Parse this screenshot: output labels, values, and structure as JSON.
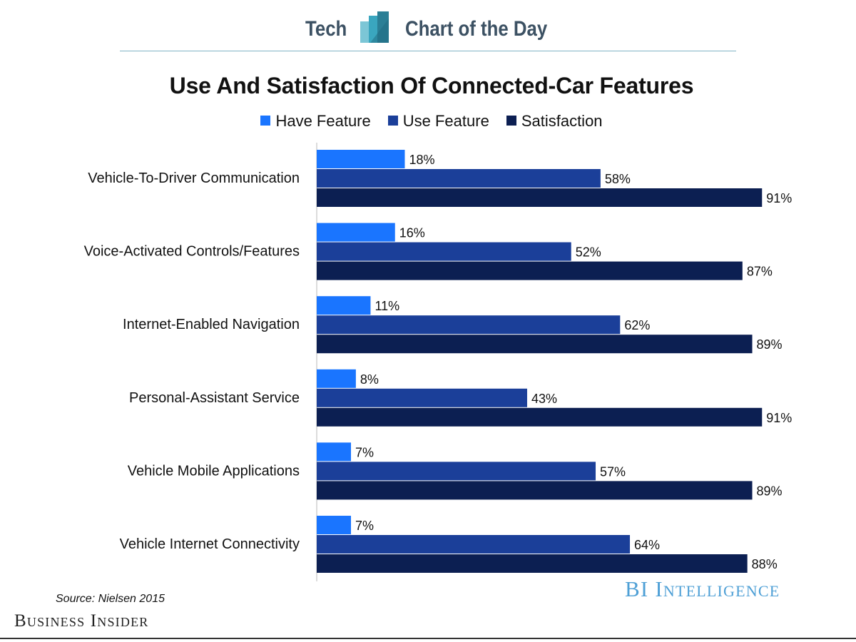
{
  "header": {
    "left_text": "Tech",
    "right_text": "Chart of the Day",
    "logo_icon": "bar-chart-logo-icon"
  },
  "colors": {
    "have_feature": "#1a75ff",
    "use_feature": "#1b3f99",
    "satisfaction": "#0c1f52",
    "header_text": "#3c5163",
    "bi_intelligence": "#4fa0d6"
  },
  "footer": {
    "source": "Source: Nielsen 2015",
    "publisher": "Business Insider",
    "brand": "BI Intelligence"
  },
  "chart_data": {
    "type": "bar",
    "orientation": "horizontal",
    "title": "Use And Satisfaction Of Connected-Car Features",
    "xlabel": "",
    "ylabel": "",
    "xlim": [
      0,
      100
    ],
    "grid": false,
    "legend": "top",
    "categories": [
      "Vehicle-To-Driver Communication",
      "Voice-Activated Controls/Features",
      "Internet-Enabled Navigation",
      "Personal-Assistant Service",
      "Vehicle Mobile Applications",
      "Vehicle Internet Connectivity"
    ],
    "series": [
      {
        "name": "Have Feature",
        "color": "#1a75ff",
        "values": [
          18,
          16,
          11,
          8,
          7,
          7
        ]
      },
      {
        "name": "Use Feature",
        "color": "#1b3f99",
        "values": [
          58,
          52,
          62,
          43,
          57,
          64
        ]
      },
      {
        "name": "Satisfaction",
        "color": "#0c1f52",
        "values": [
          91,
          87,
          89,
          91,
          89,
          88
        ]
      }
    ],
    "value_suffix": "%"
  }
}
